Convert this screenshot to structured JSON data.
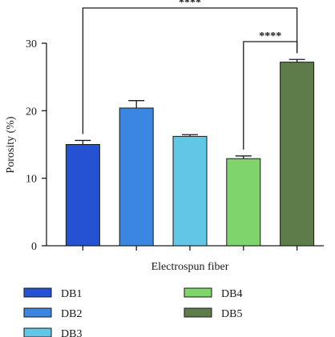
{
  "chart_data": {
    "type": "bar",
    "xlabel": "Electrospun fiber",
    "ylabel": "Porosity (%)",
    "ylim": [
      0,
      30
    ],
    "yticks": [
      0,
      10,
      20,
      30
    ],
    "grid": false,
    "legend_position": "bottom",
    "categories": [
      "DB1",
      "DB2",
      "DB3",
      "DB4",
      "DB5"
    ],
    "values": [
      15.0,
      20.4,
      16.2,
      12.9,
      27.2
    ],
    "errors": [
      0.6,
      1.1,
      0.25,
      0.4,
      0.4
    ],
    "colors": [
      "#2452d3",
      "#3a86e0",
      "#62c6e6",
      "#7fd46b",
      "#5e7c4a"
    ],
    "significance": [
      {
        "from": "DB1",
        "to": "DB5",
        "label": "****"
      },
      {
        "from": "DB4",
        "to": "DB5",
        "label": "****"
      }
    ]
  }
}
